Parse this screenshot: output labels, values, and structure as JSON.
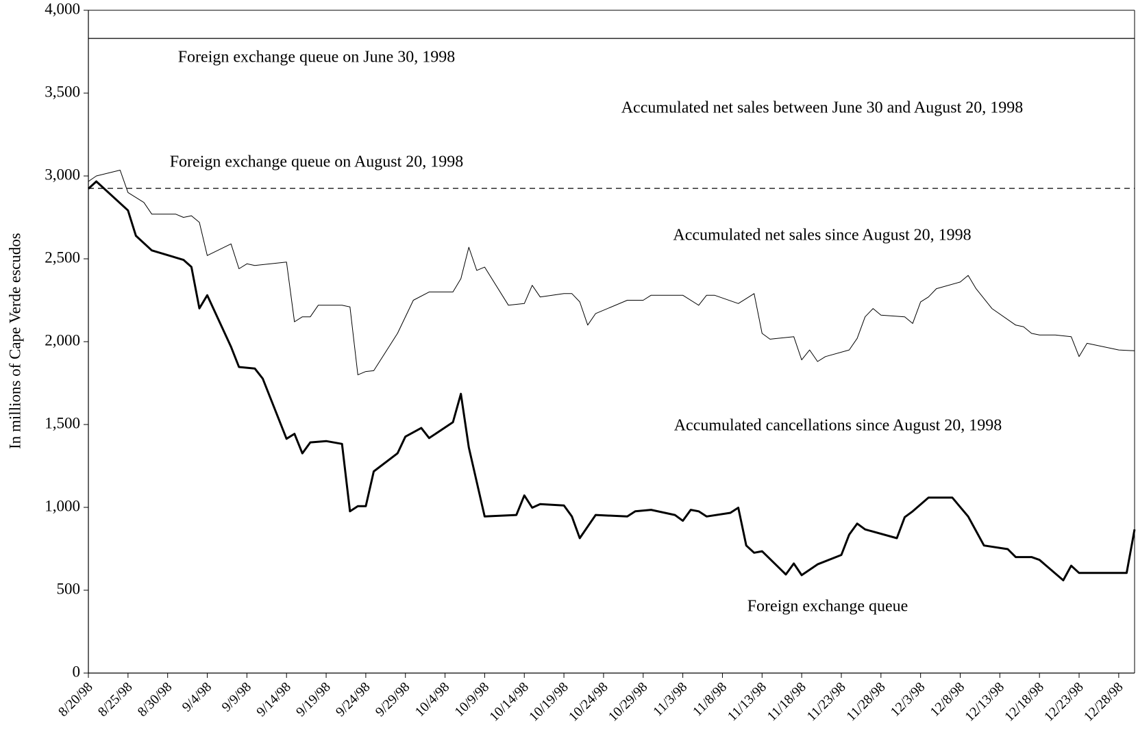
{
  "chart_data": {
    "type": "line",
    "y_label": "In millions of Cape Verde escudos",
    "ylim": [
      0,
      4000
    ],
    "yticks": [
      0,
      500,
      {
        "value": 1000,
        "label": "1,000"
      },
      {
        "value": 1500,
        "label": "1,500"
      },
      {
        "value": 2000,
        "label": "2,000"
      },
      {
        "value": 2500,
        "label": "2,500"
      },
      {
        "value": 3000,
        "label": "3,000"
      },
      {
        "value": 3500,
        "label": "3,500"
      },
      {
        "value": 4000,
        "label": "4,000"
      }
    ],
    "xlim": [
      "8/20/98",
      "12/30/98"
    ],
    "xticks": [
      "8/20/98",
      "8/25/98",
      "8/30/98",
      "9/4/98",
      "9/9/98",
      "9/14/98",
      "9/19/98",
      "9/24/98",
      "9/29/98",
      "10/4/98",
      "10/9/98",
      "10/14/98",
      "10/19/98",
      "10/24/98",
      "10/29/98",
      "11/3/98",
      "11/8/98",
      "11/13/98",
      "11/18/98",
      "11/23/98",
      "11/28/98",
      "12/3/98",
      "12/8/98",
      "12/13/98",
      "12/18/98",
      "12/23/98",
      "12/28/98"
    ],
    "reference_lines": [
      {
        "value": 3830,
        "style": "solid"
      },
      {
        "value": 2925,
        "style": "dashed"
      }
    ],
    "annotations": [
      "Foreign exchange queue on June 30, 1998",
      "Accumulated net sales between June 30 and August 20, 1998",
      "Foreign exchange queue on August 20, 1998",
      "Accumulated net sales since August 20, 1998",
      "Accumulated cancellations since August 20, 1998",
      "Foreign exchange queue"
    ],
    "series": [
      {
        "color": "#000000",
        "width": 1,
        "x": [
          "8/20/98",
          "8/21/98",
          "8/24/98",
          "8/25/98",
          "8/27/98",
          "8/28/98",
          "8/31/98",
          "9/1/98",
          "9/2/98",
          "9/3/98",
          "9/4/98",
          "9/7/98",
          "9/8/98",
          "9/9/98",
          "9/10/98",
          "9/14/98",
          "9/15/98",
          "9/16/98",
          "9/17/98",
          "9/18/98",
          "9/21/98",
          "9/22/98",
          "9/23/98",
          "9/24/98",
          "9/25/98",
          "9/28/98",
          "9/30/98",
          "10/2/98",
          "10/5/98",
          "10/6/98",
          "10/7/98",
          "10/8/98",
          "10/9/98",
          "10/12/98",
          "10/14/98",
          "10/15/98",
          "10/16/98",
          "10/19/98",
          "10/20/98",
          "10/21/98",
          "10/22/98",
          "10/23/98",
          "10/27/98",
          "10/29/98",
          "10/30/98",
          "11/2/98",
          "11/3/98",
          "11/5/98",
          "11/6/98",
          "11/7/98",
          "11/10/98",
          "11/11/98",
          "11/12/98",
          "11/13/98",
          "11/14/98",
          "11/17/98",
          "11/18/98",
          "11/19/98",
          "11/20/98",
          "11/21/98",
          "11/24/98",
          "11/25/98",
          "11/26/98",
          "11/27/98",
          "11/28/98",
          "12/1/98",
          "12/2/98",
          "12/3/98",
          "12/4/98",
          "12/5/98",
          "12/8/98",
          "12/9/98",
          "12/10/98",
          "12/12/98",
          "12/15/98",
          "12/16/98",
          "12/17/98",
          "12/18/98",
          "12/20/98",
          "12/22/98",
          "12/23/98",
          "12/24/98",
          "12/28/98",
          "12/30/98"
        ],
        "values": [
          2967,
          3000,
          3035,
          2900,
          2840,
          2770,
          2770,
          2750,
          2760,
          2720,
          2520,
          2590,
          2440,
          2470,
          2460,
          2480,
          2120,
          2150,
          2150,
          2220,
          2220,
          2210,
          1800,
          1820,
          1825,
          2050,
          2250,
          2300,
          2300,
          2380,
          2570,
          2430,
          2450,
          2220,
          2230,
          2340,
          2270,
          2290,
          2290,
          2240,
          2100,
          2170,
          2250,
          2250,
          2280,
          2280,
          2280,
          2220,
          2280,
          2280,
          2230,
          2260,
          2290,
          2050,
          2015,
          2030,
          1890,
          1950,
          1880,
          1910,
          1950,
          2020,
          2150,
          2200,
          2160,
          2150,
          2110,
          2240,
          2270,
          2320,
          2360,
          2400,
          2320,
          2200,
          2100,
          2090,
          2050,
          2040,
          2040,
          2030,
          1910,
          1990,
          1950,
          1945
        ]
      },
      {
        "color": "#000000",
        "width": 3,
        "x": [
          "8/20/98",
          "8/21/98",
          "8/25/98",
          "8/26/98",
          "8/28/98",
          "9/1/98",
          "9/2/98",
          "9/3/98",
          "9/4/98",
          "9/7/98",
          "9/8/98",
          "9/10/98",
          "9/11/98",
          "9/14/98",
          "9/15/98",
          "9/16/98",
          "9/17/98",
          "9/19/98",
          "9/21/98",
          "9/22/98",
          "9/23/98",
          "9/24/98",
          "9/25/98",
          "9/28/98",
          "9/29/98",
          "10/1/98",
          "10/2/98",
          "10/5/98",
          "10/6/98",
          "10/7/98",
          "10/9/98",
          "10/13/98",
          "10/14/98",
          "10/15/98",
          "10/16/98",
          "10/19/98",
          "10/20/98",
          "10/21/98",
          "10/23/98",
          "10/27/98",
          "10/28/98",
          "10/30/98",
          "11/2/98",
          "11/3/98",
          "11/4/98",
          "11/5/98",
          "11/6/98",
          "11/9/98",
          "11/10/98",
          "11/11/98",
          "11/12/98",
          "11/13/98",
          "11/16/98",
          "11/17/98",
          "11/18/98",
          "11/20/98",
          "11/23/98",
          "11/24/98",
          "11/25/98",
          "11/26/98",
          "11/30/98",
          "12/1/98",
          "12/2/98",
          "12/4/98",
          "12/7/98",
          "12/9/98",
          "12/10/98",
          "12/11/98",
          "12/14/98",
          "12/15/98",
          "12/17/98",
          "12/18/98",
          "12/21/98",
          "12/22/98",
          "12/23/98",
          "12/29/98",
          "12/30/98"
        ],
        "values": [
          2923,
          2967,
          2792,
          2639,
          2551,
          2494,
          2451,
          2201,
          2280,
          1969,
          1847,
          1838,
          1777,
          1414,
          1444,
          1326,
          1392,
          1400,
          1383,
          976,
          1007,
          1007,
          1217,
          1326,
          1427,
          1479,
          1418,
          1514,
          1685,
          1361,
          945,
          954,
          1072,
          998,
          1020,
          1011,
          945,
          814,
          954,
          945,
          976,
          985,
          954,
          919,
          985,
          976,
          945,
          967,
          998,
          770,
          726,
          735,
          595,
          661,
          591,
          656,
          713,
          836,
          902,
          867,
          814,
          941,
          976,
          1059,
          1059,
          945,
          858,
          770,
          748,
          700,
          700,
          683,
          560,
          648,
          604,
          604,
          867
        ]
      }
    ]
  }
}
